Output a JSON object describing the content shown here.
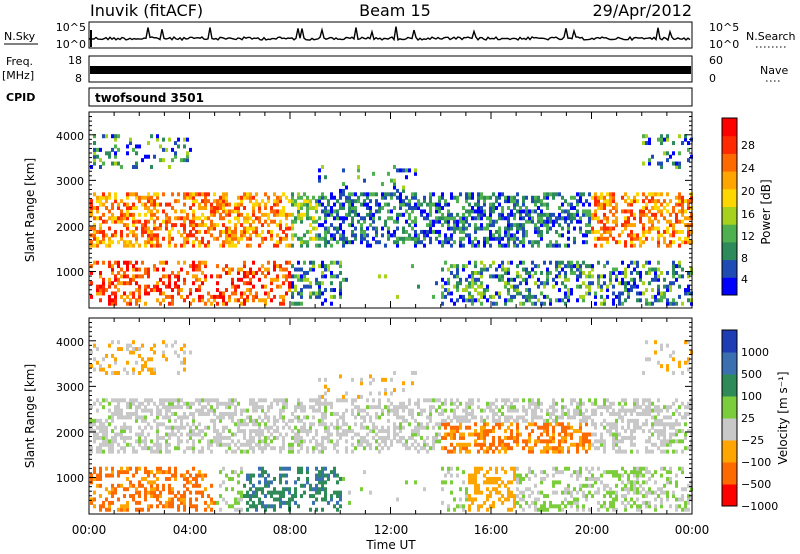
{
  "header": {
    "station": "Inuvik (fitACF)",
    "beam": "Beam 15",
    "date": "29/Apr/2012"
  },
  "summary_panels": {
    "nsky": {
      "label": "N.Sky",
      "ticks": [
        "10^5",
        "10^0"
      ],
      "right_label": "N.Search",
      "right_ticks": [
        "10^5",
        "10^0"
      ]
    },
    "freq": {
      "label_line1": "Freq.",
      "label_line2": "[MHz]",
      "ticks": [
        "18",
        "8"
      ],
      "right_label": "Nave",
      "right_ticks": [
        "60",
        "0"
      ]
    },
    "cpid": {
      "label": "CPID",
      "value": "twofsound 3501"
    }
  },
  "chart_data": [
    {
      "type": "heatmap",
      "name": "power",
      "ylabel": "Slant Range [km]",
      "yticks": [
        "1000",
        "2000",
        "3000",
        "4000"
      ],
      "ylim": [
        200,
        4500
      ],
      "xlim": [
        0,
        24
      ],
      "colorbar": {
        "label": "Power [dB]",
        "ticks": [
          "28",
          "24",
          "20",
          "16",
          "12",
          "8",
          "4"
        ],
        "range": [
          0,
          30
        ],
        "colors": [
          "#0000ff",
          "#1e4bb4",
          "#2d8a5a",
          "#4fb04f",
          "#a6d21e",
          "#ffd700",
          "#ffa500",
          "#ff6a00",
          "#ff2a00",
          "#ff0000"
        ]
      }
    },
    {
      "type": "heatmap",
      "name": "velocity",
      "ylabel": "Slant Range [km]",
      "yticks": [
        "1000",
        "2000",
        "3000",
        "4000"
      ],
      "ylim": [
        200,
        4500
      ],
      "xlim": [
        0,
        24
      ],
      "xticks": [
        "00:00",
        "04:00",
        "08:00",
        "12:00",
        "16:00",
        "20:00",
        "00:00"
      ],
      "xlabel": "Time UT",
      "colorbar": {
        "label": "Velocity [m s⁻¹]",
        "ticks": [
          "1000",
          "500",
          "100",
          "25",
          "−25",
          "−100",
          "−500",
          "−1000"
        ],
        "colors": [
          "#1e3cb4",
          "#3a70b0",
          "#2e8b57",
          "#7ccd3c",
          "#c8c8c8",
          "#ffa500",
          "#ff6a00",
          "#ff0000"
        ]
      }
    }
  ]
}
